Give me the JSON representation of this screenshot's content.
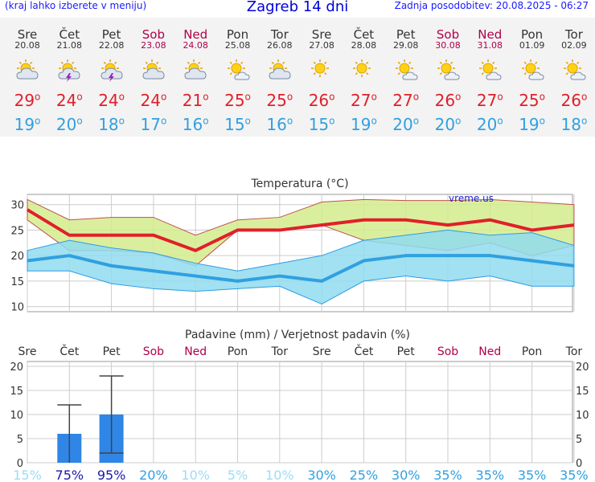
{
  "header": {
    "menu_note": "(kraj lahko izberete v meniju)",
    "title": "Zagreb 14 dni",
    "updated": "Zadnja posodobitev: 20.08.2025 - 06:27"
  },
  "days": [
    {
      "name": "Sre",
      "date": "20.08",
      "weekend": false,
      "icon": "partly-cloudy-icon",
      "max": "29",
      "min": "19"
    },
    {
      "name": "Čet",
      "date": "21.08",
      "weekend": false,
      "icon": "thunderstorm-icon",
      "max": "24",
      "min": "20"
    },
    {
      "name": "Pet",
      "date": "22.08",
      "weekend": false,
      "icon": "thunderstorm-icon",
      "max": "24",
      "min": "18"
    },
    {
      "name": "Sob",
      "date": "23.08",
      "weekend": true,
      "icon": "partly-cloudy-icon",
      "max": "24",
      "min": "17"
    },
    {
      "name": "Ned",
      "date": "24.08",
      "weekend": true,
      "icon": "partly-cloudy-icon",
      "max": "21",
      "min": "16"
    },
    {
      "name": "Pon",
      "date": "25.08",
      "weekend": false,
      "icon": "mostly-sunny-icon",
      "max": "25",
      "min": "15"
    },
    {
      "name": "Tor",
      "date": "26.08",
      "weekend": false,
      "icon": "partly-cloudy-icon",
      "max": "25",
      "min": "16"
    },
    {
      "name": "Sre",
      "date": "27.08",
      "weekend": false,
      "icon": "sunny-icon",
      "max": "26",
      "min": "15"
    },
    {
      "name": "Čet",
      "date": "28.08",
      "weekend": false,
      "icon": "sunny-icon",
      "max": "27",
      "min": "19"
    },
    {
      "name": "Pet",
      "date": "29.08",
      "weekend": false,
      "icon": "mostly-sunny-icon",
      "max": "27",
      "min": "20"
    },
    {
      "name": "Sob",
      "date": "30.08",
      "weekend": true,
      "icon": "mostly-sunny-icon",
      "max": "26",
      "min": "20"
    },
    {
      "name": "Ned",
      "date": "31.08",
      "weekend": true,
      "icon": "mostly-sunny-icon",
      "max": "27",
      "min": "20"
    },
    {
      "name": "Pon",
      "date": "01.09",
      "weekend": false,
      "icon": "mostly-sunny-icon",
      "max": "25",
      "min": "19"
    },
    {
      "name": "Tor",
      "date": "02.09",
      "weekend": false,
      "icon": "mostly-sunny-icon",
      "max": "26",
      "min": "18"
    }
  ],
  "degree_symbol": "o",
  "colors": {
    "max": "#e0202a",
    "min": "#30a0e0",
    "weekend": "#b0004a",
    "max_band": "#d4ec8c",
    "min_band": "#90dcef",
    "bar": "#2f86e6",
    "prob": "#30a0e0",
    "prob_high": "#1a1aaa"
  },
  "chart_data": [
    {
      "type": "line",
      "title": "Temperatura (°C)",
      "watermark": "vreme.us",
      "ylim": [
        9,
        32
      ],
      "yticks": [
        10,
        15,
        20,
        25,
        30
      ],
      "series": [
        {
          "values": [
            29,
            24,
            24,
            24,
            21,
            25,
            25,
            26,
            27,
            27,
            26,
            27,
            25,
            26
          ]
        },
        {
          "values": [
            19,
            20,
            18,
            17,
            16,
            15,
            16,
            15,
            19,
            20,
            20,
            20,
            19,
            18
          ]
        }
      ],
      "bands": [
        {
          "upper": [
            31,
            27,
            27.5,
            27.5,
            24,
            27,
            27.5,
            30.5,
            31,
            30.8,
            30.8,
            31,
            30.5,
            30
          ],
          "lower": [
            27,
            21,
            21,
            20.5,
            18,
            null,
            null,
            null,
            23,
            22,
            21,
            22.5,
            20,
            22
          ]
        },
        {
          "upper": [
            21,
            23,
            21.5,
            20.5,
            18.5,
            17,
            18.5,
            20,
            23,
            24,
            25,
            24,
            24.5,
            22
          ],
          "lower": [
            17,
            17,
            14.5,
            13.5,
            13,
            13.5,
            14,
            10.5,
            15,
            16,
            15,
            16,
            14,
            14
          ]
        }
      ]
    },
    {
      "type": "bar",
      "title": "Padavine (mm) / Verjetnost padavin (%)",
      "categories": [
        "Sre",
        "Čet",
        "Pet",
        "Sob",
        "Ned",
        "Pon",
        "Tor",
        "Sre",
        "Čet",
        "Pet",
        "Sob",
        "Ned",
        "Pon",
        "Tor"
      ],
      "values": [
        0,
        6,
        10,
        0,
        0,
        0,
        0,
        0,
        0,
        0,
        0,
        0,
        0,
        0
      ],
      "error_high": [
        null,
        12,
        18,
        null,
        null,
        null,
        null,
        null,
        null,
        null,
        null,
        null,
        null,
        null
      ],
      "error_low": [
        null,
        0,
        2,
        null,
        null,
        null,
        null,
        null,
        null,
        null,
        null,
        null,
        null,
        null
      ],
      "probability": [
        "15%",
        "75%",
        "95%",
        "20%",
        "10%",
        "5%",
        "10%",
        "30%",
        "25%",
        "30%",
        "35%",
        "35%",
        "35%",
        "35%"
      ],
      "ylim": [
        0,
        21
      ],
      "yticks": [
        0,
        5,
        10,
        15,
        20
      ]
    }
  ]
}
